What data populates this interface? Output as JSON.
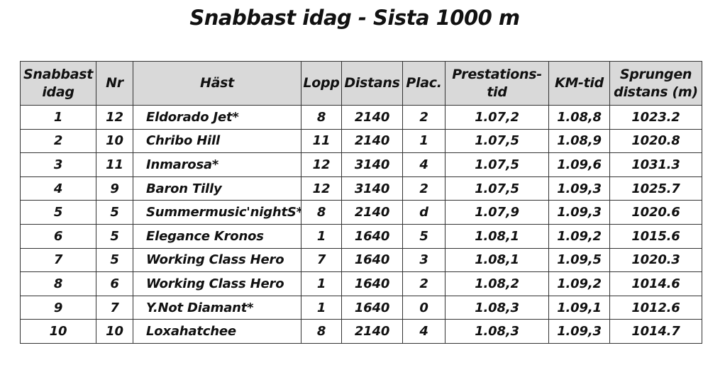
{
  "title": "Snabbast idag - Sista 1000 m",
  "table": {
    "headers": [
      {
        "line1": "Snabbast",
        "line2": "idag"
      },
      {
        "line1": "Nr",
        "line2": ""
      },
      {
        "line1": "Häst",
        "line2": ""
      },
      {
        "line1": "Lopp",
        "line2": ""
      },
      {
        "line1": "Distans",
        "line2": ""
      },
      {
        "line1": "Plac.",
        "line2": ""
      },
      {
        "line1": "Prestations-",
        "line2": "tid"
      },
      {
        "line1": "KM-tid",
        "line2": ""
      },
      {
        "line1": "Sprungen",
        "line2": "distans (m)"
      }
    ],
    "rows": [
      [
        "1",
        "12",
        "Eldorado Jet*",
        "8",
        "2140",
        "2",
        "1.07,2",
        "1.08,8",
        "1023.2"
      ],
      [
        "2",
        "10",
        "Chribo Hill",
        "11",
        "2140",
        "1",
        "1.07,5",
        "1.08,9",
        "1020.8"
      ],
      [
        "3",
        "11",
        "Inmarosa*",
        "12",
        "3140",
        "4",
        "1.07,5",
        "1.09,6",
        "1031.3"
      ],
      [
        "4",
        "9",
        "Baron Tilly",
        "12",
        "3140",
        "2",
        "1.07,5",
        "1.09,3",
        "1025.7"
      ],
      [
        "5",
        "5",
        "Summermusic'nightS*",
        "8",
        "2140",
        "d",
        "1.07,9",
        "1.09,3",
        "1020.6"
      ],
      [
        "6",
        "5",
        "Elegance Kronos",
        "1",
        "1640",
        "5",
        "1.08,1",
        "1.09,2",
        "1015.6"
      ],
      [
        "7",
        "5",
        "Working Class Hero",
        "7",
        "1640",
        "3",
        "1.08,1",
        "1.09,5",
        "1020.3"
      ],
      [
        "8",
        "6",
        "Working Class Hero",
        "1",
        "1640",
        "2",
        "1.08,2",
        "1.09,2",
        "1014.6"
      ],
      [
        "9",
        "7",
        "Y.Not Diamant*",
        "1",
        "1640",
        "0",
        "1.08,3",
        "1.09,1",
        "1012.6"
      ],
      [
        "10",
        "10",
        "Loxahatchee",
        "8",
        "2140",
        "4",
        "1.08,3",
        "1.09,3",
        "1014.7"
      ]
    ]
  }
}
